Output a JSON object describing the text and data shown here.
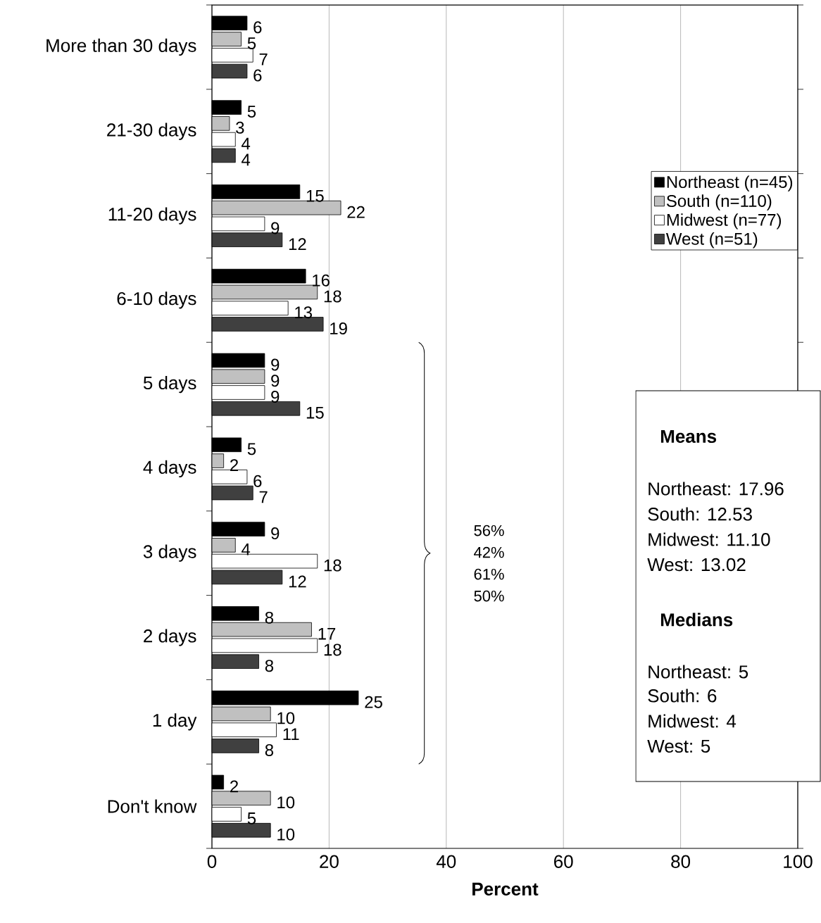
{
  "chart_data": {
    "type": "bar",
    "orientation": "horizontal",
    "xlabel": "Percent",
    "categories": [
      "More than 30 days",
      "21-30 days",
      "11-20 days",
      "6-10 days",
      "5 days",
      "4 days",
      "3 days",
      "2 days",
      "1 day",
      "Don't know"
    ],
    "series": [
      {
        "name": "Northeast (n=45)",
        "color": "#000000",
        "values": [
          6,
          5,
          15,
          16,
          9,
          5,
          9,
          8,
          25,
          2
        ]
      },
      {
        "name": "South (n=110)",
        "color": "#c0c0c0",
        "values": [
          5,
          3,
          22,
          18,
          9,
          2,
          4,
          17,
          10,
          10
        ]
      },
      {
        "name": "Midwest (n=77)",
        "color": "#ffffff",
        "values": [
          7,
          4,
          9,
          13,
          9,
          6,
          18,
          18,
          11,
          5
        ]
      },
      {
        "name": "West (n=51)",
        "color": "#404040",
        "values": [
          6,
          4,
          12,
          19,
          15,
          7,
          12,
          8,
          8,
          10
        ]
      }
    ],
    "xlim": [
      0,
      100
    ],
    "xticks": [
      0,
      20,
      40,
      60,
      80,
      100
    ],
    "grid": "x",
    "legend": "right",
    "data_labels": true,
    "annotations": [
      "56%",
      "42%",
      "61%",
      "50%",
      "Means",
      "Northeast: 17.96",
      "South: 12.53",
      "Midwest: 11.10",
      "West: 13.02",
      "Medians",
      "Northeast: 5",
      "South: 6",
      "Midwest: 4",
      "West: 5"
    ]
  }
}
